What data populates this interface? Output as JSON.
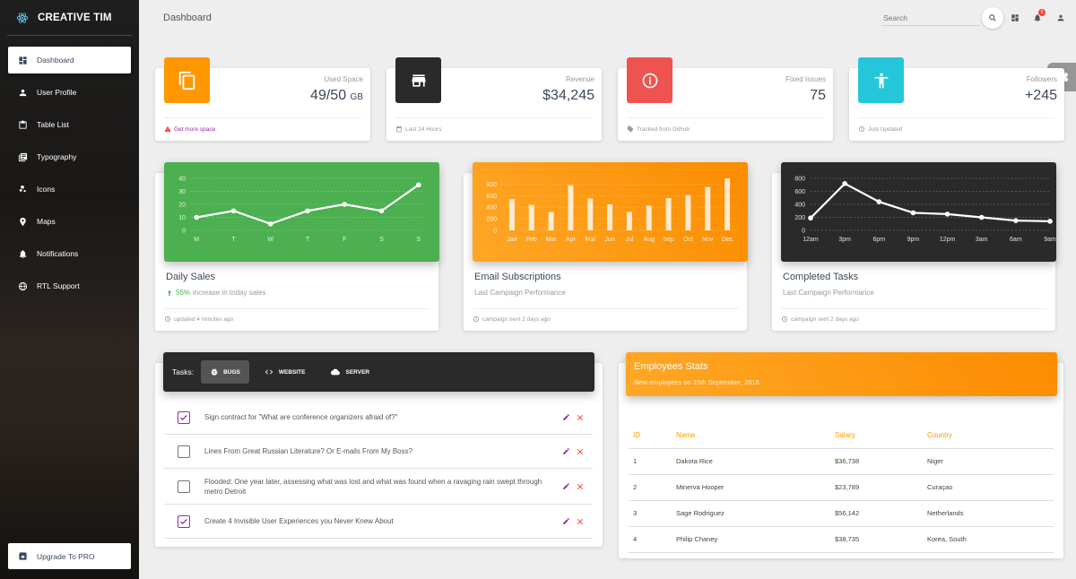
{
  "sidebar": {
    "brand": "CREATIVE TIM",
    "items": [
      {
        "label": "Dashboard",
        "icon": "dashboard-icon",
        "active": true
      },
      {
        "label": "User Profile",
        "icon": "person-icon"
      },
      {
        "label": "Table List",
        "icon": "clipboard-icon"
      },
      {
        "label": "Typography",
        "icon": "library-books-icon"
      },
      {
        "label": "Icons",
        "icon": "bubble-chart-icon"
      },
      {
        "label": "Maps",
        "icon": "location-icon"
      },
      {
        "label": "Notifications",
        "icon": "bell-icon"
      },
      {
        "label": "RTL Support",
        "icon": "language-icon"
      }
    ],
    "upgrade": "Upgrade To PRO"
  },
  "topbar": {
    "title": "Dashboard",
    "search_placeholder": "Search",
    "notification_count": "5"
  },
  "stats": [
    {
      "category": "Used Space",
      "value": "49/50",
      "unit": "GB",
      "footer": "Get more space",
      "color": "#ff9800",
      "icon": "copy-icon",
      "footer_icon": "warning-icon"
    },
    {
      "category": "Revenue",
      "value": "$34,245",
      "unit": "",
      "footer": "Last 24 Hours",
      "color": "#2a2a2a",
      "icon": "store-icon",
      "footer_icon": "calendar-icon"
    },
    {
      "category": "Fixed Issues",
      "value": "75",
      "unit": "",
      "footer": "Tracked from Github",
      "color": "#ef5350",
      "icon": "info-icon",
      "footer_icon": "tag-icon"
    },
    {
      "category": "Followers",
      "value": "+245",
      "unit": "",
      "footer": "Just Updated",
      "color": "#26c6da",
      "icon": "accessibility-icon",
      "footer_icon": "update-icon"
    }
  ],
  "charts": [
    {
      "title": "Daily Sales",
      "sub_pct": "55%",
      "sub_text": "increase in today sales",
      "footer": "updated 4 minutes ago",
      "color": "#4caf50"
    },
    {
      "title": "Email Subscriptions",
      "sub_text": "Last Campaign Performance",
      "footer": "campaign sent 2 days ago",
      "color": "#ff9800"
    },
    {
      "title": "Completed Tasks",
      "sub_text": "Last Campaign Performance",
      "footer": "campaign sent 2 days ago",
      "color": "#2a2a2a"
    }
  ],
  "chart_data": [
    {
      "type": "line",
      "x": [
        "M",
        "T",
        "W",
        "T",
        "F",
        "S",
        "S"
      ],
      "values": [
        10,
        15,
        5,
        15,
        20,
        15,
        35
      ],
      "ylim": [
        0,
        40
      ],
      "yticks": [
        "40",
        "30",
        "20",
        "10",
        "0"
      ]
    },
    {
      "type": "bar",
      "categories": [
        "Jan",
        "Feb",
        "Mar",
        "Apr",
        "Mai",
        "Jun",
        "Jul",
        "Aug",
        "Sep",
        "Oct",
        "Nov",
        "Dec"
      ],
      "values": [
        540,
        440,
        320,
        780,
        550,
        450,
        320,
        430,
        560,
        610,
        750,
        900
      ],
      "ylim": [
        0,
        900
      ],
      "yticks": [
        "800",
        "600",
        "400",
        "200",
        "0"
      ]
    },
    {
      "type": "line",
      "x": [
        "12am",
        "3pm",
        "6pm",
        "9pm",
        "12pm",
        "3am",
        "6am",
        "9am"
      ],
      "values": [
        190,
        720,
        440,
        270,
        250,
        200,
        150,
        140
      ],
      "ylim": [
        0,
        800
      ],
      "yticks": [
        "800",
        "600",
        "400",
        "200",
        "0"
      ]
    }
  ],
  "tasks": {
    "label": "Tasks:",
    "tabs": [
      {
        "label": "BUGS",
        "icon": "bug-icon",
        "active": true
      },
      {
        "label": "WEBSITE",
        "icon": "code-icon"
      },
      {
        "label": "SERVER",
        "icon": "cloud-icon"
      }
    ],
    "items": [
      {
        "text": "Sign contract for \"What are conference organizers afraid of?\"",
        "checked": true
      },
      {
        "text": "Lines From Great Russian Literature? Or E-mails From My Boss?",
        "checked": false
      },
      {
        "text": "Flooded: One year later, assessing what was lost and what was found when a ravaging rain swept through metro Detroit",
        "checked": false
      },
      {
        "text": "Create 4 Invisible User Experiences you Never Knew About",
        "checked": true
      }
    ]
  },
  "employees": {
    "title": "Employees Stats",
    "subtitle": "New employees on 15th September, 2016",
    "columns": [
      "ID",
      "Name",
      "Salary",
      "Country"
    ],
    "rows": [
      [
        "1",
        "Dakota Rice",
        "$36,738",
        "Niger"
      ],
      [
        "2",
        "Minerva Hooper",
        "$23,789",
        "Curaçao"
      ],
      [
        "3",
        "Sage Rodriguez",
        "$56,142",
        "Netherlands"
      ],
      [
        "4",
        "Philip Chaney",
        "$38,735",
        "Korea, South"
      ]
    ]
  },
  "colors": {
    "accent": "#9c27b0",
    "warning": "#ff9800",
    "success": "#4caf50",
    "danger": "#f44336"
  }
}
